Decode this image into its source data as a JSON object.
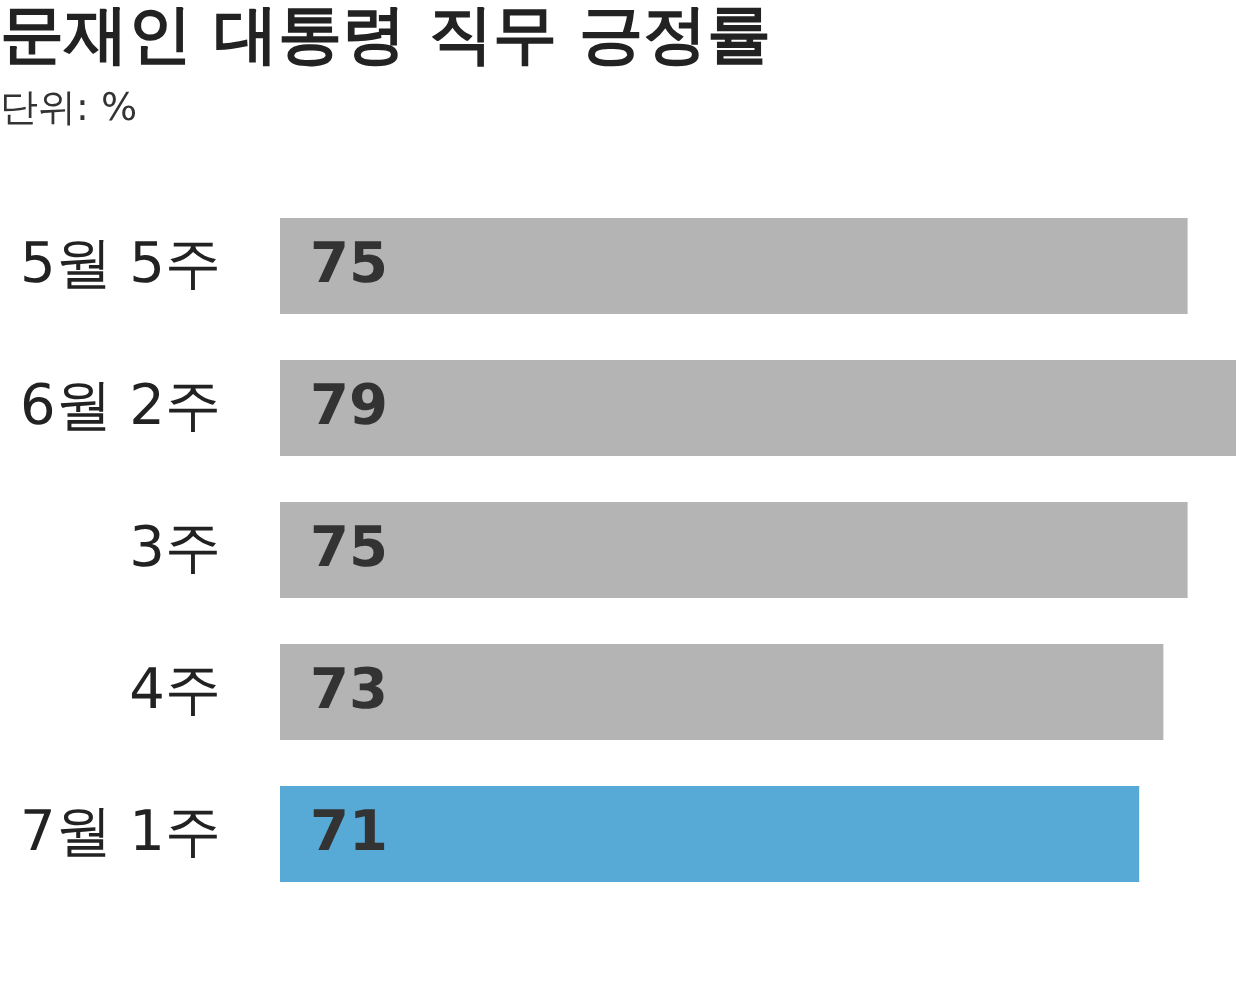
{
  "chart_data": {
    "type": "bar",
    "orientation": "horizontal",
    "title": "문재인 대통령 직무 긍정률",
    "subtitle": "단위: %",
    "categories": [
      "5월 5주",
      "6월 2주",
      "3주",
      "4주",
      "7월 1주"
    ],
    "values": [
      75,
      79,
      75,
      73,
      71
    ],
    "colors": [
      "#b4b4b4",
      "#b4b4b4",
      "#b4b4b4",
      "#b4b4b4",
      "#58aad6"
    ],
    "data_labels": true
  }
}
